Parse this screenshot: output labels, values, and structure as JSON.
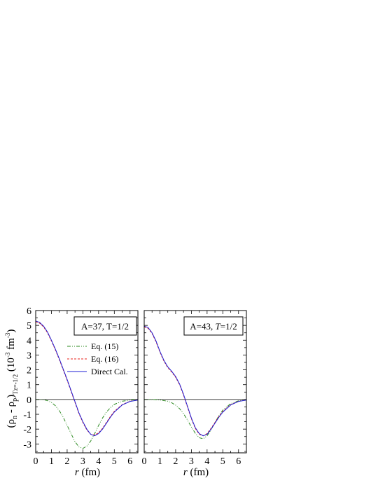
{
  "chart_data": [
    {
      "type": "line",
      "panel": "left",
      "annotation": "A=37, T=1/2",
      "xlim": [
        0,
        6.5
      ],
      "ylim": [
        -3.6,
        6
      ],
      "xticks": [
        0,
        1,
        2,
        3,
        4,
        5,
        6
      ],
      "yticks": [
        -3,
        -2,
        -1,
        0,
        1,
        2,
        3,
        4,
        5,
        6
      ],
      "xlabel": "r (fm)",
      "ylabel": "(ρn - ρp)Tz=-1/2 (10-3 fm-3)",
      "legend": [
        "Eq. (15)",
        "Eq. (16)",
        "Direct Cal."
      ],
      "series": [
        {
          "name": "Eq. (15)",
          "color": "#2e8b22",
          "style": "dash-dot-dot",
          "x": [
            0,
            0.25,
            0.5,
            0.75,
            1.0,
            1.25,
            1.5,
            1.75,
            2.0,
            2.25,
            2.5,
            2.75,
            3.0,
            3.25,
            3.5,
            3.75,
            4.0,
            4.25,
            4.5,
            4.75,
            5.0,
            5.5,
            6.0,
            6.5
          ],
          "y": [
            0.0,
            0.0,
            -0.02,
            -0.08,
            -0.2,
            -0.42,
            -0.75,
            -1.2,
            -1.75,
            -2.3,
            -2.85,
            -3.2,
            -3.3,
            -3.15,
            -2.8,
            -2.3,
            -1.75,
            -1.25,
            -0.85,
            -0.55,
            -0.33,
            -0.12,
            -0.04,
            -0.01
          ]
        },
        {
          "name": "Eq. (16)",
          "color": "#e8231c",
          "style": "dashed",
          "x": [
            0,
            0.25,
            0.5,
            0.75,
            1.0,
            1.25,
            1.5,
            1.75,
            2.0,
            2.25,
            2.5,
            2.75,
            3.0,
            3.25,
            3.5,
            3.75,
            4.0,
            4.25,
            4.5,
            4.75,
            5.0,
            5.5,
            6.0,
            6.5
          ],
          "y": [
            5.25,
            5.15,
            4.9,
            4.5,
            3.95,
            3.35,
            2.7,
            2.0,
            1.3,
            0.55,
            -0.2,
            -0.95,
            -1.55,
            -2.05,
            -2.35,
            -2.4,
            -2.25,
            -1.95,
            -1.55,
            -1.15,
            -0.8,
            -0.35,
            -0.12,
            -0.04
          ]
        },
        {
          "name": "Direct Cal.",
          "color": "#1f1fd6",
          "style": "solid",
          "x": [
            0,
            0.25,
            0.5,
            0.75,
            1.0,
            1.25,
            1.5,
            1.75,
            2.0,
            2.25,
            2.5,
            2.75,
            3.0,
            3.25,
            3.5,
            3.75,
            4.0,
            4.25,
            4.5,
            4.75,
            5.0,
            5.5,
            6.0,
            6.5
          ],
          "y": [
            5.3,
            5.2,
            4.95,
            4.55,
            4.0,
            3.4,
            2.75,
            2.05,
            1.35,
            0.6,
            -0.15,
            -0.9,
            -1.5,
            -2.0,
            -2.35,
            -2.45,
            -2.3,
            -2.0,
            -1.6,
            -1.2,
            -0.85,
            -0.37,
            -0.13,
            -0.04
          ]
        }
      ]
    },
    {
      "type": "line",
      "panel": "right",
      "annotation": "A=43, T=1/2",
      "xlim": [
        0,
        6.5
      ],
      "ylim": [
        -3.6,
        6
      ],
      "xticks": [
        0,
        1,
        2,
        3,
        4,
        5,
        6
      ],
      "yticks": [
        -3,
        -2,
        -1,
        0,
        1,
        2,
        3,
        4,
        5,
        6
      ],
      "xlabel": "r (fm)",
      "series": [
        {
          "name": "Eq. (15)",
          "color": "#2e8b22",
          "style": "dash-dot-dot",
          "x": [
            0,
            0.5,
            1.0,
            1.5,
            1.75,
            2.0,
            2.25,
            2.5,
            2.75,
            3.0,
            3.25,
            3.5,
            3.75,
            4.0,
            4.25,
            4.5,
            4.75,
            5.0,
            5.5,
            6.0,
            6.5
          ],
          "y": [
            0.0,
            0.0,
            -0.03,
            -0.12,
            -0.22,
            -0.38,
            -0.62,
            -0.95,
            -1.38,
            -1.85,
            -2.28,
            -2.58,
            -2.65,
            -2.45,
            -2.05,
            -1.55,
            -1.1,
            -0.72,
            -0.28,
            -0.09,
            -0.02
          ]
        },
        {
          "name": "Eq. (16)",
          "color": "#e8231c",
          "style": "dashed",
          "x": [
            0,
            0.25,
            0.5,
            0.75,
            1.0,
            1.25,
            1.5,
            1.75,
            2.0,
            2.25,
            2.5,
            2.75,
            3.0,
            3.25,
            3.5,
            3.75,
            4.0,
            4.25,
            4.5,
            4.75,
            5.0,
            5.5,
            6.0,
            6.5
          ],
          "y": [
            4.9,
            4.8,
            4.45,
            3.9,
            3.2,
            2.6,
            2.15,
            1.85,
            1.5,
            1.0,
            0.3,
            -0.5,
            -1.3,
            -1.95,
            -2.35,
            -2.45,
            -2.3,
            -1.95,
            -1.55,
            -1.15,
            -0.8,
            -0.35,
            -0.12,
            -0.04
          ]
        },
        {
          "name": "Direct Cal.",
          "color": "#1f1fd6",
          "style": "solid",
          "x": [
            0,
            0.25,
            0.5,
            0.75,
            1.0,
            1.25,
            1.5,
            1.75,
            2.0,
            2.25,
            2.5,
            2.75,
            3.0,
            3.25,
            3.5,
            3.75,
            4.0,
            4.25,
            4.5,
            4.75,
            5.0,
            5.5,
            6.0,
            6.5
          ],
          "y": [
            4.95,
            4.85,
            4.5,
            3.95,
            3.25,
            2.65,
            2.2,
            1.9,
            1.55,
            1.05,
            0.35,
            -0.45,
            -1.25,
            -1.9,
            -2.3,
            -2.45,
            -2.35,
            -2.0,
            -1.6,
            -1.2,
            -0.85,
            -0.37,
            -0.13,
            -0.04
          ]
        }
      ]
    }
  ],
  "ylabel_parts": {
    "pre": "(ρ",
    "sub_n": "n",
    "mid": " - ρ",
    "sub_p": "p",
    "post": ")",
    "sub_tz": "Tz=-1/2",
    "unit_pre": " (10",
    "sup1": "-3",
    "unit_mid": " fm",
    "sup2": "-3",
    "unit_post": ")"
  },
  "xlabel_parts": {
    "r": "r",
    "unit": " (fm)"
  },
  "annot_parts": {
    "left": {
      "a": "A=37, ",
      "t": "T",
      "rest": "=1/2"
    },
    "right": {
      "a": "A=43, ",
      "t": "T",
      "rest": "=1/2"
    }
  }
}
